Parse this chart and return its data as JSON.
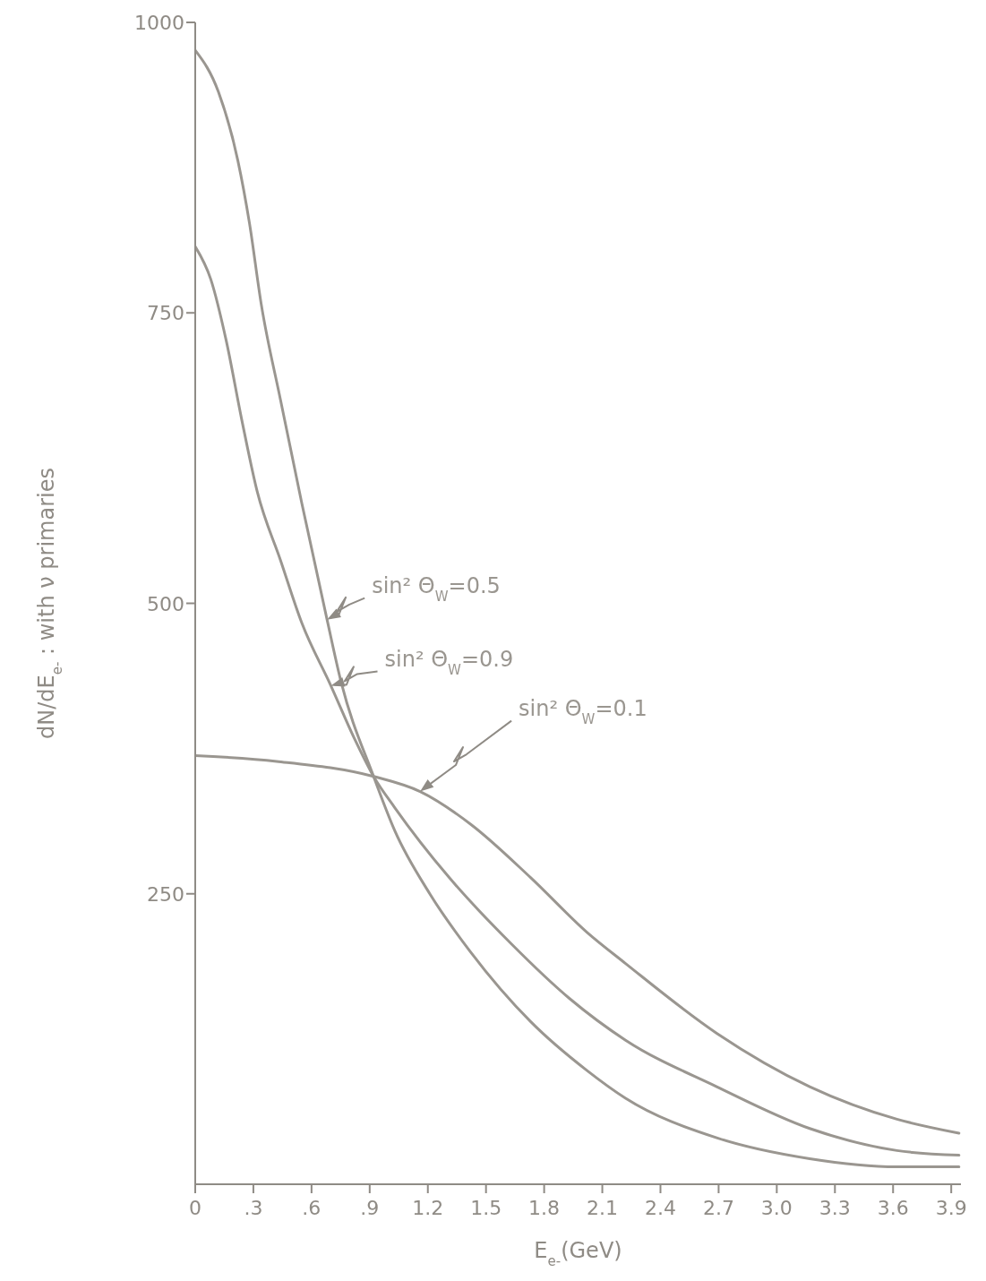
{
  "chart_data": {
    "type": "line",
    "xlabel": "E$_{e-}$(GeV)",
    "ylabel": "dN/dE$_{e-}$ : with ν primaries",
    "xlim": [
      0,
      3.95
    ],
    "ylim": [
      0,
      1000
    ],
    "xticks": [
      0,
      {
        "value": 0.3,
        "label": ".3"
      },
      {
        "value": 0.6,
        "label": ".6"
      },
      {
        "value": 0.9,
        "label": ".9"
      },
      1.2,
      1.5,
      1.8,
      2.1,
      2.4,
      2.7,
      {
        "value": 3.0,
        "label": "3.0"
      },
      3.3,
      3.6,
      3.9
    ],
    "yticks": [
      250,
      500,
      750,
      1000
    ],
    "marker": "none",
    "line_style": "solid",
    "series": [
      {
        "name": "sin² Θ$_{W}$=0.5",
        "color": "#9a9690",
        "x": [
          0,
          0.12,
          0.22,
          0.28,
          0.34,
          0.44,
          0.55,
          0.68,
          0.75,
          0.92,
          1.03,
          1.21,
          1.42,
          1.73,
          2.02,
          2.22,
          2.69,
          3.17,
          3.62,
          3.94
        ],
        "values": [
          976,
          940,
          881,
          827,
          758,
          675,
          586,
          486,
          434,
          351,
          304,
          250,
          200,
          140,
          98,
          74,
          40,
          22,
          15,
          15
        ]
      },
      {
        "name": "sin² Θ$_{W}$=0.9",
        "color": "#9a9690",
        "x": [
          0,
          0.08,
          0.16,
          0.24,
          0.32,
          0.44,
          0.55,
          0.7,
          0.82,
          0.92,
          1.03,
          1.31,
          1.63,
          1.93,
          2.22,
          2.69,
          3.17,
          3.62,
          3.94
        ],
        "values": [
          807,
          779,
          726,
          658,
          596,
          537,
          483,
          429,
          384,
          351,
          324,
          264,
          207,
          160,
          124,
          84,
          48,
          29,
          25
        ]
      },
      {
        "name": "sin² Θ$_{W}$=0.1",
        "color": "#9a9690",
        "x": [
          0,
          0.42,
          0.92,
          1.16,
          1.42,
          1.73,
          2.02,
          2.22,
          2.69,
          3.17,
          3.62,
          3.94
        ],
        "values": [
          369,
          364,
          351,
          338,
          310,
          264,
          217,
          190,
          130,
          84,
          56,
          44
        ]
      }
    ]
  }
}
